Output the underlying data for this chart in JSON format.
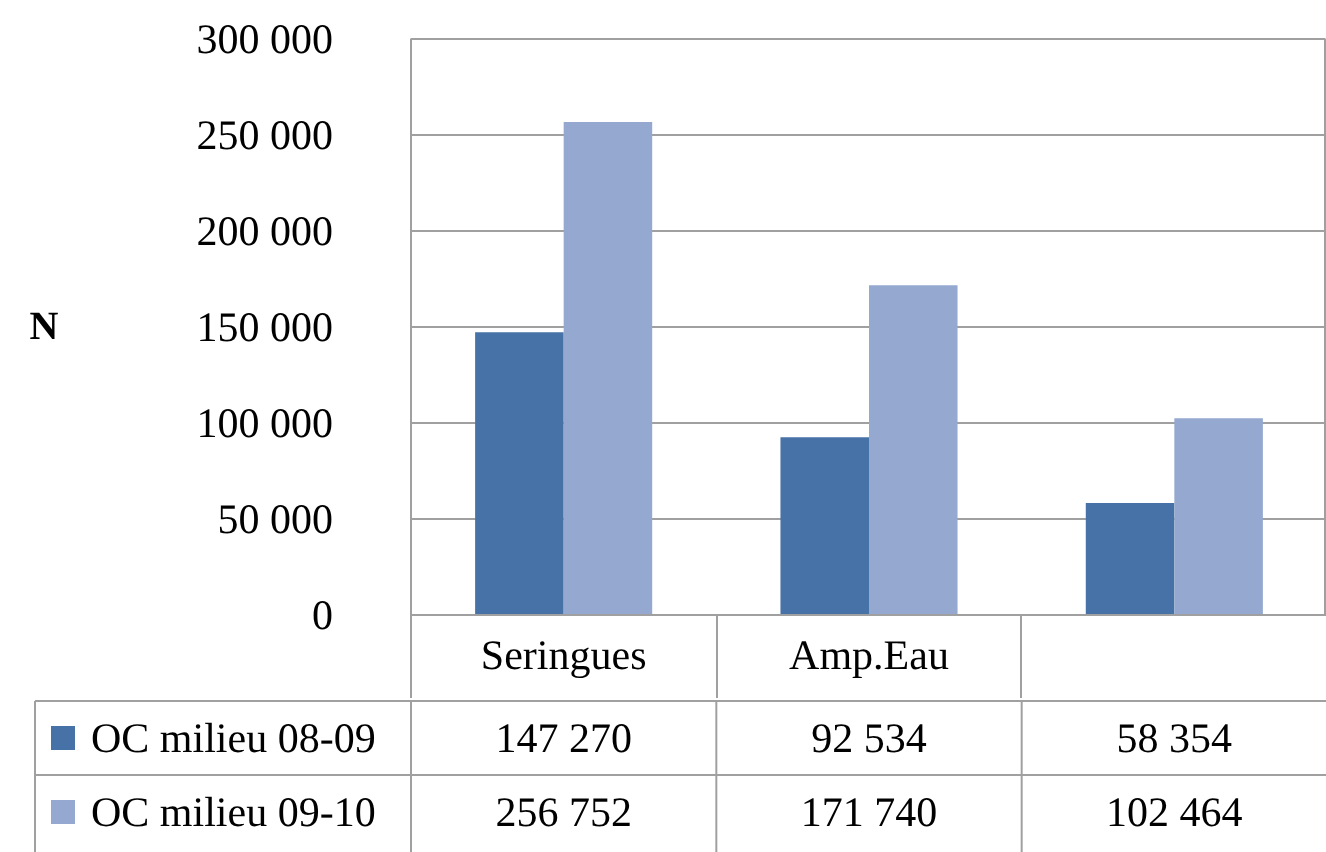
{
  "chart_data": {
    "type": "bar",
    "ylabel": "N",
    "categories": [
      "Seringues",
      "Amp.Eau",
      null
    ],
    "series": [
      {
        "name": "OC milieu 08-09",
        "color": "#4672a8",
        "values": [
          147270,
          92534,
          58354
        ],
        "value_labels": [
          "147 270",
          "92 534",
          "58 354"
        ]
      },
      {
        "name": "OC milieu 09-10",
        "color": "#95a9d0",
        "values": [
          256752,
          171740,
          102464
        ],
        "value_labels": [
          "256 752",
          "171 740",
          "102 464"
        ]
      }
    ],
    "ylim": [
      0,
      300000
    ],
    "yticks": [
      0,
      {
        "value": 50000,
        "label": "50 000"
      },
      {
        "value": 100000,
        "label": "100 000"
      },
      {
        "value": 150000,
        "label": "150 000"
      },
      {
        "value": 200000,
        "label": "200 000"
      },
      {
        "value": 250000,
        "label": "250 000"
      },
      {
        "value": 300000,
        "label": "300 000"
      }
    ],
    "grid": "y",
    "legend": "bottom"
  }
}
